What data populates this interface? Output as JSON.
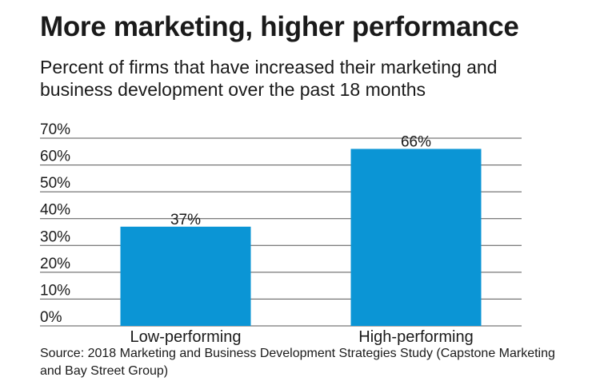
{
  "title": "More marketing, higher performance",
  "subtitle": "Percent of firms that have increased their marketing and business development over the past 18 months",
  "source": "Source: 2018 Marketing and Business Development Strategies Study (Capstone Marketing and Bay Street Group)",
  "colors": {
    "bar": "#0b95d5",
    "grid": "#555555",
    "text": "#1a1a1a"
  },
  "chart_data": {
    "type": "bar",
    "title": "More marketing, higher performance",
    "subtitle": "Percent of firms that have increased their marketing and business development over the past 18 months",
    "categories": [
      "Low-performing",
      "High-performing"
    ],
    "values": [
      37,
      66
    ],
    "data_labels": [
      "37%",
      "66%"
    ],
    "y_ticks": [
      "0%",
      "10%",
      "20%",
      "30%",
      "40%",
      "50%",
      "60%",
      "70%"
    ],
    "ylim": [
      0,
      70
    ],
    "unit": "%",
    "grid": true,
    "legend": "none"
  }
}
